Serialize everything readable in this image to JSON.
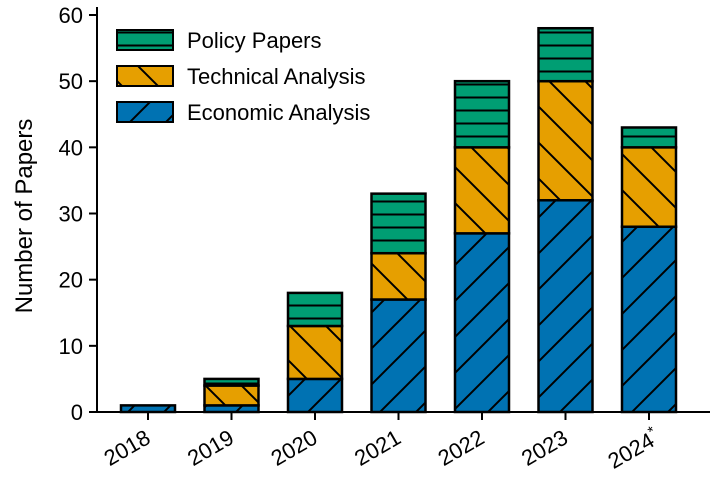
{
  "chart_data": {
    "type": "bar",
    "stacked": true,
    "title": "",
    "xlabel": "",
    "ylabel": "Number of Papers",
    "ylim": [
      0,
      60
    ],
    "yticks": [
      0,
      10,
      20,
      30,
      40,
      50,
      60
    ],
    "categories": [
      "2018",
      "2019",
      "2020",
      "2021",
      "2022",
      "2023",
      "2024"
    ],
    "category_superscripts": [
      "",
      "",
      "",
      "",
      "",
      "",
      "*"
    ],
    "series": [
      {
        "name": "Economic Analysis",
        "color": "#0072B2",
        "hatch": "diagonal-forward",
        "values": [
          1,
          1,
          5,
          17,
          27,
          32,
          28
        ]
      },
      {
        "name": "Technical Analysis",
        "color": "#E69F00",
        "hatch": "diagonal-backward",
        "values": [
          0,
          3,
          8,
          7,
          13,
          18,
          12
        ]
      },
      {
        "name": "Policy Papers",
        "color": "#009E73",
        "hatch": "horizontal",
        "values": [
          0,
          1,
          5,
          9,
          10,
          8,
          3
        ]
      }
    ],
    "legend": {
      "position": "top-left",
      "order": [
        "Policy Papers",
        "Technical Analysis",
        "Economic Analysis"
      ]
    },
    "grid": false
  }
}
